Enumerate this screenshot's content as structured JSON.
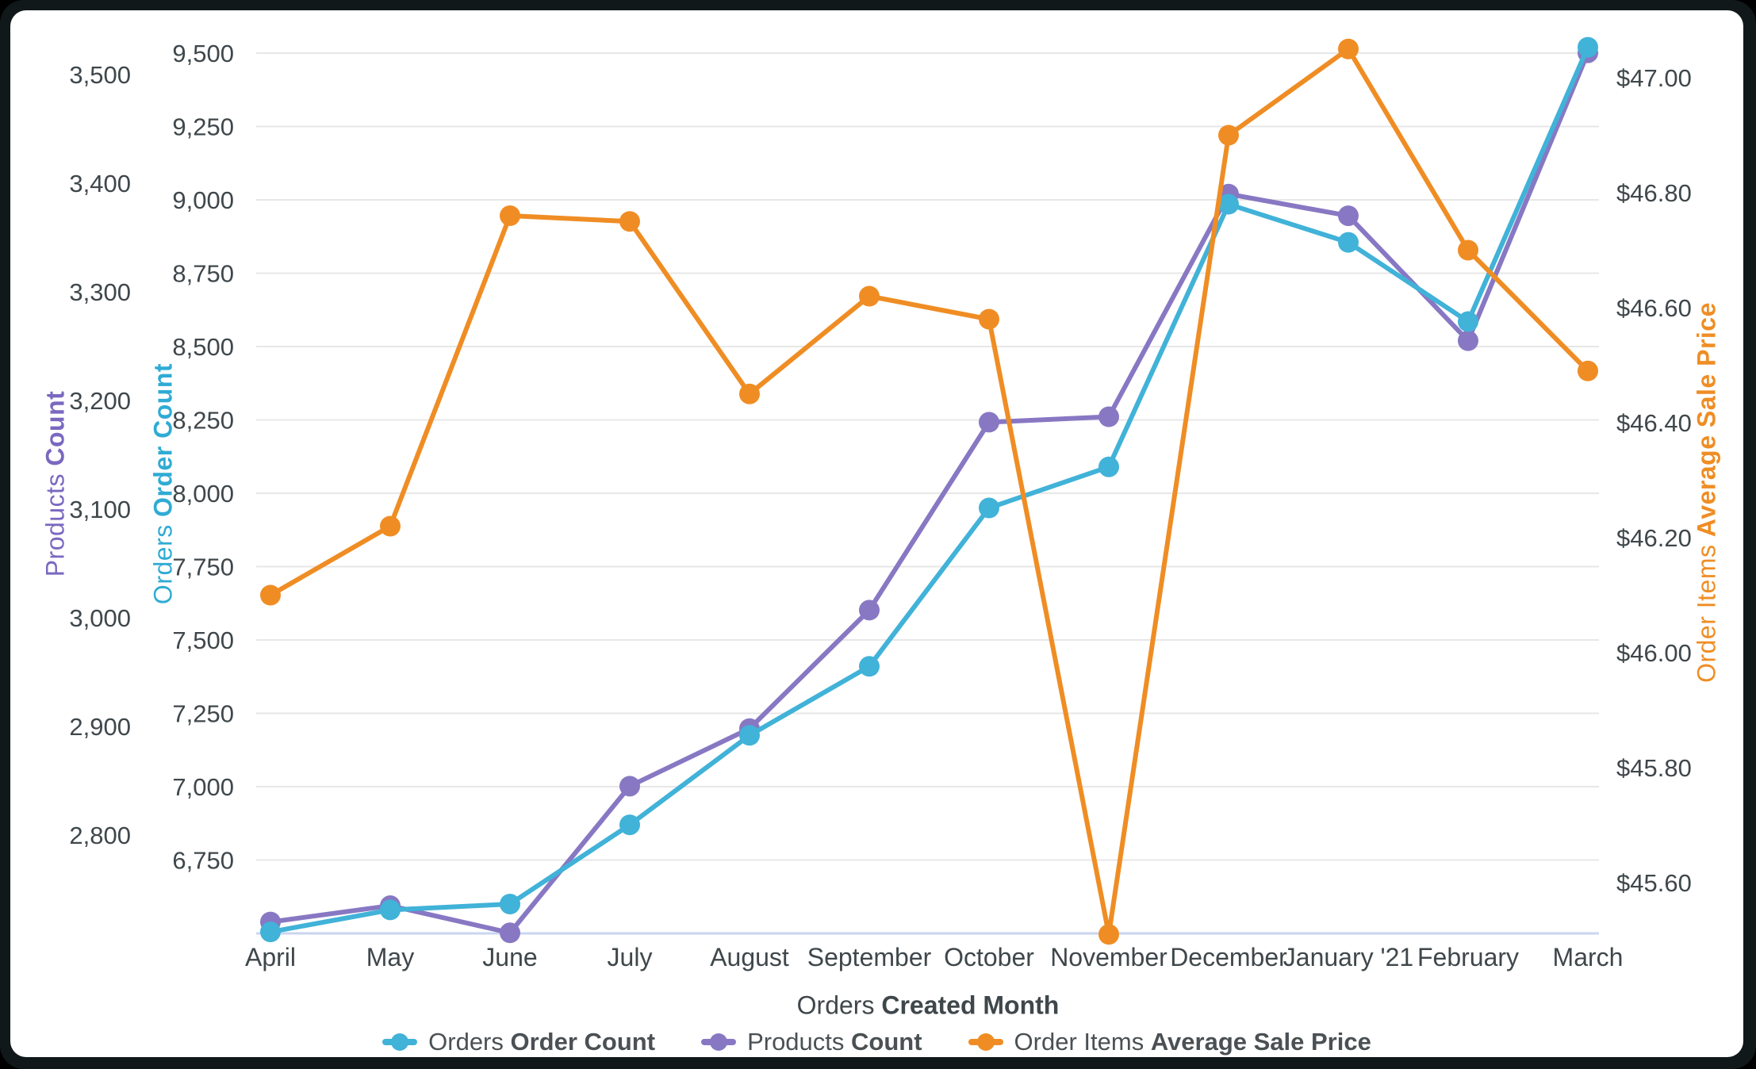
{
  "window": {
    "frame_color": "#10181a",
    "card_color": "#ffffff",
    "gridline_color": "#e7e7e7",
    "baseline_color": "#c9d6f0",
    "tick_text_color": "#3f474b"
  },
  "chart_data": {
    "type": "line",
    "categories": [
      "April",
      "May",
      "June",
      "July",
      "August",
      "September",
      "October",
      "November",
      "December",
      "January '21",
      "February",
      "March"
    ],
    "series": [
      {
        "name_regular": "Orders",
        "name_bold": "Order Count",
        "axis": "orders",
        "color": "#41b2d8",
        "values": [
          6505,
          6580,
          6600,
          6870,
          7175,
          7410,
          7950,
          8090,
          8985,
          8855,
          8585,
          9520
        ]
      },
      {
        "name_regular": "Products",
        "name_bold": "Count",
        "axis": "products",
        "color": "#8878c3",
        "values": [
          2720,
          2735,
          2710,
          2845,
          2898,
          3007,
          3180,
          3185,
          3390,
          3370,
          3255,
          3520
        ]
      },
      {
        "name_regular": "Order Items",
        "name_bold": "Average Sale Price",
        "axis": "price",
        "color": "#ef8d24",
        "values": [
          46.1,
          46.22,
          46.76,
          46.75,
          46.45,
          46.62,
          46.58,
          45.51,
          46.9,
          47.05,
          46.7,
          46.49
        ]
      }
    ],
    "axes": {
      "products": {
        "title_regular": "Products",
        "title_bold": "Count",
        "color": "#7a68c0",
        "tick_labels": [
          "3,500",
          "3,400",
          "3,300",
          "3,200",
          "3,100",
          "3,000",
          "2,900",
          "2,800"
        ],
        "tick_values": [
          3500,
          3400,
          3300,
          3200,
          3100,
          3000,
          2900,
          2800
        ],
        "range": [
          2710,
          3539
        ]
      },
      "orders": {
        "title_regular": "Orders",
        "title_bold": "Order Count",
        "color": "#2fabd4",
        "tick_labels": [
          "9,500",
          "9,250",
          "9,000",
          "8,750",
          "8,500",
          "8,250",
          "8,000",
          "7,750",
          "7,500",
          "7,250",
          "7,000",
          "6,750"
        ],
        "tick_values": [
          9500,
          9250,
          9000,
          8750,
          8500,
          8250,
          8000,
          7750,
          7500,
          7250,
          7000,
          6750
        ],
        "range": [
          6500,
          9563
        ]
      },
      "price": {
        "title_regular": "Order Items",
        "title_bold": "Average Sale Price",
        "color": "#ef8d24",
        "tick_labels": [
          "$47.00",
          "$46.80",
          "$46.60",
          "$46.40",
          "$46.20",
          "$46.00",
          "$45.80",
          "$45.60"
        ],
        "tick_values": [
          47.0,
          46.8,
          46.6,
          46.4,
          46.2,
          46.0,
          45.8,
          45.6
        ],
        "range": [
          45.51,
          47.08
        ]
      },
      "x": {
        "title_regular": "Orders",
        "title_bold": "Created Month"
      }
    },
    "grid": true,
    "legend_position": "bottom"
  },
  "legend": {
    "items": [
      {
        "regular": "Orders ",
        "bold": "Order Count"
      },
      {
        "regular": "Products ",
        "bold": "Count"
      },
      {
        "regular": "Order Items ",
        "bold": "Average Sale Price"
      }
    ]
  }
}
